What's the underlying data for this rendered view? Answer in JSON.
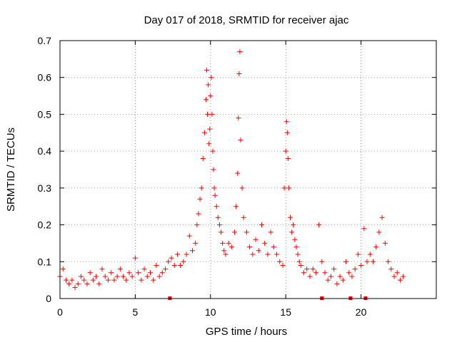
{
  "chart_data": {
    "type": "scatter",
    "title": "Day 017 of 2018, SRMTID for receiver ajac",
    "xlabel": "GPS time / hours",
    "ylabel": "SRMTID / TECUs",
    "xlim": [
      0,
      25
    ],
    "ylim": [
      0,
      0.7
    ],
    "grid": true,
    "x_ticks": [
      0,
      5,
      10,
      15,
      20
    ],
    "x_tick_labels": [
      "0",
      "5",
      "10",
      "15",
      "20"
    ],
    "y_ticks": [
      0,
      0.1,
      0.2,
      0.3,
      0.4,
      0.5,
      0.6,
      0.7
    ],
    "y_tick_labels": [
      "0",
      "0.1",
      "0.2",
      "0.3",
      "0.4",
      "0.5",
      "0.6",
      "0.7"
    ],
    "marker": "+",
    "color": "#ff0000",
    "series": [
      {
        "name": "SRMTID",
        "x": [
          0.0,
          0.2,
          0.4,
          0.6,
          0.8,
          1.0,
          1.2,
          1.4,
          1.6,
          1.8,
          2.0,
          2.2,
          2.4,
          2.6,
          2.8,
          3.0,
          3.2,
          3.4,
          3.6,
          3.8,
          4.0,
          4.2,
          4.4,
          4.6,
          4.8,
          5.0,
          5.2,
          5.4,
          5.6,
          5.8,
          6.0,
          6.2,
          6.4,
          6.6,
          6.8,
          7.0,
          7.2,
          7.4,
          7.6,
          7.8,
          8.0,
          8.2,
          8.4,
          8.6,
          8.8,
          9.0,
          9.1,
          9.2,
          9.3,
          9.4,
          9.5,
          9.6,
          9.7,
          9.75,
          9.8,
          9.85,
          9.9,
          9.95,
          10.0,
          10.05,
          10.1,
          10.15,
          10.2,
          10.25,
          10.3,
          10.4,
          10.5,
          10.6,
          10.7,
          10.8,
          10.9,
          11.0,
          11.2,
          11.4,
          11.6,
          11.7,
          11.8,
          11.85,
          11.9,
          11.95,
          12.0,
          12.1,
          12.2,
          12.4,
          12.6,
          12.8,
          13.0,
          13.2,
          13.4,
          13.6,
          13.8,
          14.0,
          14.2,
          14.4,
          14.6,
          14.8,
          14.9,
          15.0,
          15.05,
          15.1,
          15.15,
          15.2,
          15.3,
          15.4,
          15.5,
          15.6,
          15.7,
          15.8,
          15.9,
          16.0,
          16.2,
          16.4,
          16.6,
          16.8,
          17.0,
          17.2,
          17.4,
          17.6,
          17.8,
          18.0,
          18.2,
          18.4,
          18.6,
          18.8,
          19.0,
          19.2,
          19.4,
          19.6,
          19.8,
          20.0,
          20.2,
          20.4,
          20.6,
          20.8,
          21.0,
          21.2,
          21.4,
          21.6,
          21.8,
          22.0,
          22.2,
          22.4,
          22.6,
          22.8
        ],
        "y": [
          0.06,
          0.08,
          0.05,
          0.04,
          0.05,
          0.03,
          0.04,
          0.06,
          0.05,
          0.04,
          0.07,
          0.05,
          0.06,
          0.04,
          0.08,
          0.06,
          0.05,
          0.07,
          0.05,
          0.06,
          0.08,
          0.06,
          0.05,
          0.07,
          0.06,
          0.11,
          0.07,
          0.05,
          0.08,
          0.06,
          0.07,
          0.05,
          0.09,
          0.06,
          0.07,
          0.08,
          0.1,
          0.11,
          0.09,
          0.12,
          0.09,
          0.1,
          0.12,
          0.17,
          0.13,
          0.15,
          0.2,
          0.23,
          0.27,
          0.3,
          0.38,
          0.45,
          0.54,
          0.62,
          0.5,
          0.58,
          0.42,
          0.46,
          0.55,
          0.6,
          0.5,
          0.4,
          0.35,
          0.3,
          0.28,
          0.25,
          0.22,
          0.2,
          0.18,
          0.15,
          0.13,
          0.12,
          0.15,
          0.14,
          0.18,
          0.25,
          0.34,
          0.49,
          0.61,
          0.67,
          0.43,
          0.3,
          0.22,
          0.18,
          0.14,
          0.12,
          0.16,
          0.13,
          0.2,
          0.15,
          0.12,
          0.18,
          0.14,
          0.12,
          0.1,
          0.09,
          0.3,
          0.4,
          0.48,
          0.45,
          0.38,
          0.3,
          0.22,
          0.18,
          0.2,
          0.16,
          0.14,
          0.12,
          0.1,
          0.09,
          0.07,
          0.08,
          0.06,
          0.08,
          0.07,
          0.2,
          0.1,
          0.07,
          0.05,
          0.06,
          0.08,
          0.04,
          0.06,
          0.05,
          0.1,
          0.07,
          0.06,
          0.08,
          0.12,
          0.09,
          0.19,
          0.1,
          0.12,
          0.1,
          0.14,
          0.18,
          0.22,
          0.15,
          0.1,
          0.08,
          0.06,
          0.07,
          0.05,
          0.06
        ],
        "colour": "#ff0000"
      }
    ],
    "gap_markers_x": [
      7.3,
      17.4,
      19.3,
      20.3
    ]
  }
}
